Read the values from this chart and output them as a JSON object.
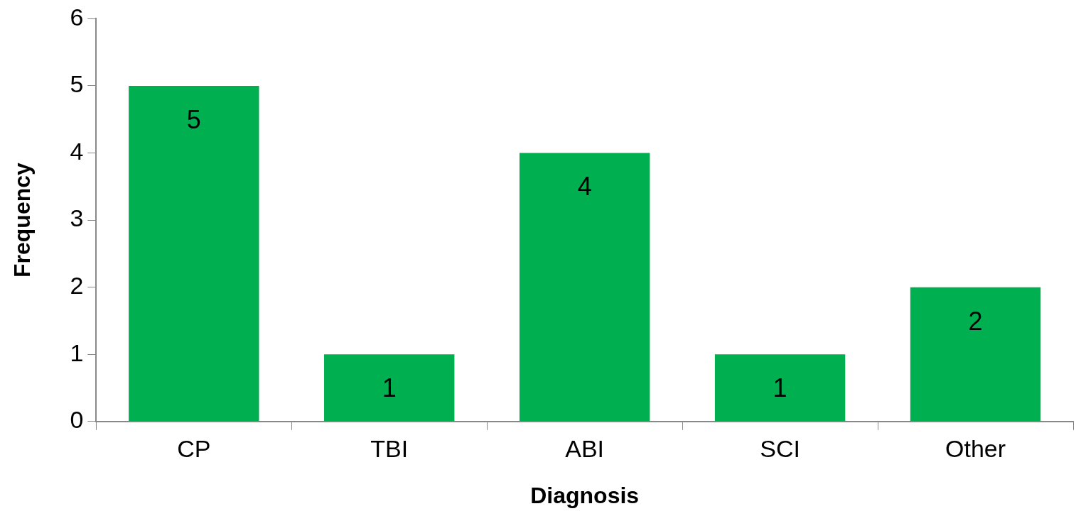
{
  "chart_data": {
    "type": "bar",
    "xlabel": "Diagnosis",
    "ylabel": "Frequency",
    "categories": [
      "CP",
      "TBI",
      "ABI",
      "SCI",
      "Other"
    ],
    "values": [
      5,
      1,
      4,
      1,
      2
    ],
    "color": "#00b050",
    "ylim": [
      0,
      6
    ],
    "yticks": [
      0,
      1,
      2,
      3,
      4,
      5,
      6
    ],
    "grid": false,
    "data_labels": true
  }
}
